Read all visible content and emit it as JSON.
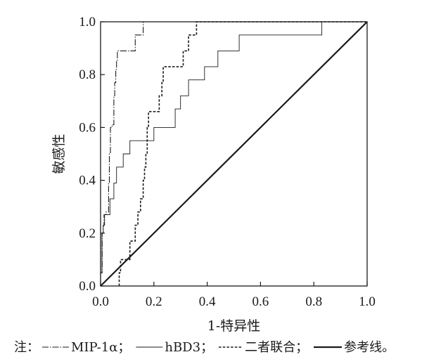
{
  "chart_data": {
    "type": "line",
    "title": "",
    "xlabel": "1-特异性",
    "ylabel": "敏感性",
    "xlim": [
      0,
      1
    ],
    "ylim": [
      0,
      1
    ],
    "grid": false,
    "x_ticks": [
      "0.0",
      "0.2",
      "0.4",
      "0.6",
      "0.8",
      "1.0"
    ],
    "y_ticks": [
      "0.0",
      "0.2",
      "0.4",
      "0.6",
      "0.8",
      "1.0"
    ],
    "series": [
      {
        "name": "MIP-1α",
        "style": "dash-dot",
        "points": [
          [
            0,
            0
          ],
          [
            0,
            0.05
          ],
          [
            0.006,
            0.05
          ],
          [
            0.006,
            0.2
          ],
          [
            0.01,
            0.2
          ],
          [
            0.01,
            0.23
          ],
          [
            0.013,
            0.23
          ],
          [
            0.013,
            0.27
          ],
          [
            0.02,
            0.27
          ],
          [
            0.02,
            0.28
          ],
          [
            0.03,
            0.28
          ],
          [
            0.03,
            0.39
          ],
          [
            0.033,
            0.39
          ],
          [
            0.033,
            0.5
          ],
          [
            0.037,
            0.5
          ],
          [
            0.037,
            0.6
          ],
          [
            0.043,
            0.6
          ],
          [
            0.043,
            0.61
          ],
          [
            0.05,
            0.61
          ],
          [
            0.05,
            0.72
          ],
          [
            0.053,
            0.72
          ],
          [
            0.053,
            0.77
          ],
          [
            0.057,
            0.77
          ],
          [
            0.057,
            0.82
          ],
          [
            0.06,
            0.82
          ],
          [
            0.06,
            0.85
          ],
          [
            0.063,
            0.85
          ],
          [
            0.063,
            0.89
          ],
          [
            0.13,
            0.89
          ],
          [
            0.13,
            0.95
          ],
          [
            0.16,
            0.95
          ],
          [
            0.16,
            1.0
          ],
          [
            1.0,
            1.0
          ]
        ]
      },
      {
        "name": "hBD3",
        "style": "solid-thin",
        "points": [
          [
            0,
            0
          ],
          [
            0,
            0.05
          ],
          [
            0.005,
            0.05
          ],
          [
            0.005,
            0.2
          ],
          [
            0.01,
            0.2
          ],
          [
            0.01,
            0.23
          ],
          [
            0.015,
            0.23
          ],
          [
            0.015,
            0.27
          ],
          [
            0.035,
            0.27
          ],
          [
            0.035,
            0.33
          ],
          [
            0.05,
            0.33
          ],
          [
            0.05,
            0.39
          ],
          [
            0.06,
            0.39
          ],
          [
            0.06,
            0.45
          ],
          [
            0.085,
            0.45
          ],
          [
            0.085,
            0.5
          ],
          [
            0.11,
            0.5
          ],
          [
            0.11,
            0.55
          ],
          [
            0.2,
            0.55
          ],
          [
            0.2,
            0.6
          ],
          [
            0.28,
            0.6
          ],
          [
            0.28,
            0.67
          ],
          [
            0.3,
            0.67
          ],
          [
            0.3,
            0.72
          ],
          [
            0.33,
            0.72
          ],
          [
            0.33,
            0.78
          ],
          [
            0.39,
            0.78
          ],
          [
            0.39,
            0.83
          ],
          [
            0.44,
            0.83
          ],
          [
            0.44,
            0.89
          ],
          [
            0.52,
            0.89
          ],
          [
            0.52,
            0.95
          ],
          [
            0.83,
            0.95
          ],
          [
            0.83,
            1.0
          ],
          [
            1.0,
            1.0
          ]
        ]
      },
      {
        "name": "二者联合",
        "style": "dashed",
        "points": [
          [
            0.07,
            0
          ],
          [
            0.07,
            0.05
          ],
          [
            0.075,
            0.05
          ],
          [
            0.075,
            0.1
          ],
          [
            0.11,
            0.1
          ],
          [
            0.11,
            0.17
          ],
          [
            0.13,
            0.17
          ],
          [
            0.13,
            0.23
          ],
          [
            0.14,
            0.23
          ],
          [
            0.14,
            0.28
          ],
          [
            0.15,
            0.28
          ],
          [
            0.15,
            0.33
          ],
          [
            0.16,
            0.33
          ],
          [
            0.16,
            0.4
          ],
          [
            0.165,
            0.4
          ],
          [
            0.165,
            0.45
          ],
          [
            0.17,
            0.45
          ],
          [
            0.17,
            0.5
          ],
          [
            0.175,
            0.5
          ],
          [
            0.175,
            0.6
          ],
          [
            0.18,
            0.6
          ],
          [
            0.18,
            0.66
          ],
          [
            0.22,
            0.66
          ],
          [
            0.22,
            0.72
          ],
          [
            0.23,
            0.72
          ],
          [
            0.23,
            0.77
          ],
          [
            0.235,
            0.77
          ],
          [
            0.235,
            0.83
          ],
          [
            0.31,
            0.83
          ],
          [
            0.31,
            0.89
          ],
          [
            0.33,
            0.89
          ],
          [
            0.33,
            0.95
          ],
          [
            0.36,
            0.95
          ],
          [
            0.36,
            1.0
          ],
          [
            1.0,
            1.0
          ]
        ]
      },
      {
        "name": "参考线",
        "style": "solid-thick",
        "points": [
          [
            0,
            0
          ],
          [
            1,
            1
          ]
        ]
      }
    ],
    "legend_position": "bottom",
    "legend": {
      "prefix": "注：",
      "entries": [
        {
          "name": "MIP-1α",
          "sep": "；"
        },
        {
          "name": "hBD3",
          "sep": "；"
        },
        {
          "name": "二者联合",
          "sep": "；"
        },
        {
          "name": "参考线",
          "sep": "。"
        }
      ]
    }
  }
}
